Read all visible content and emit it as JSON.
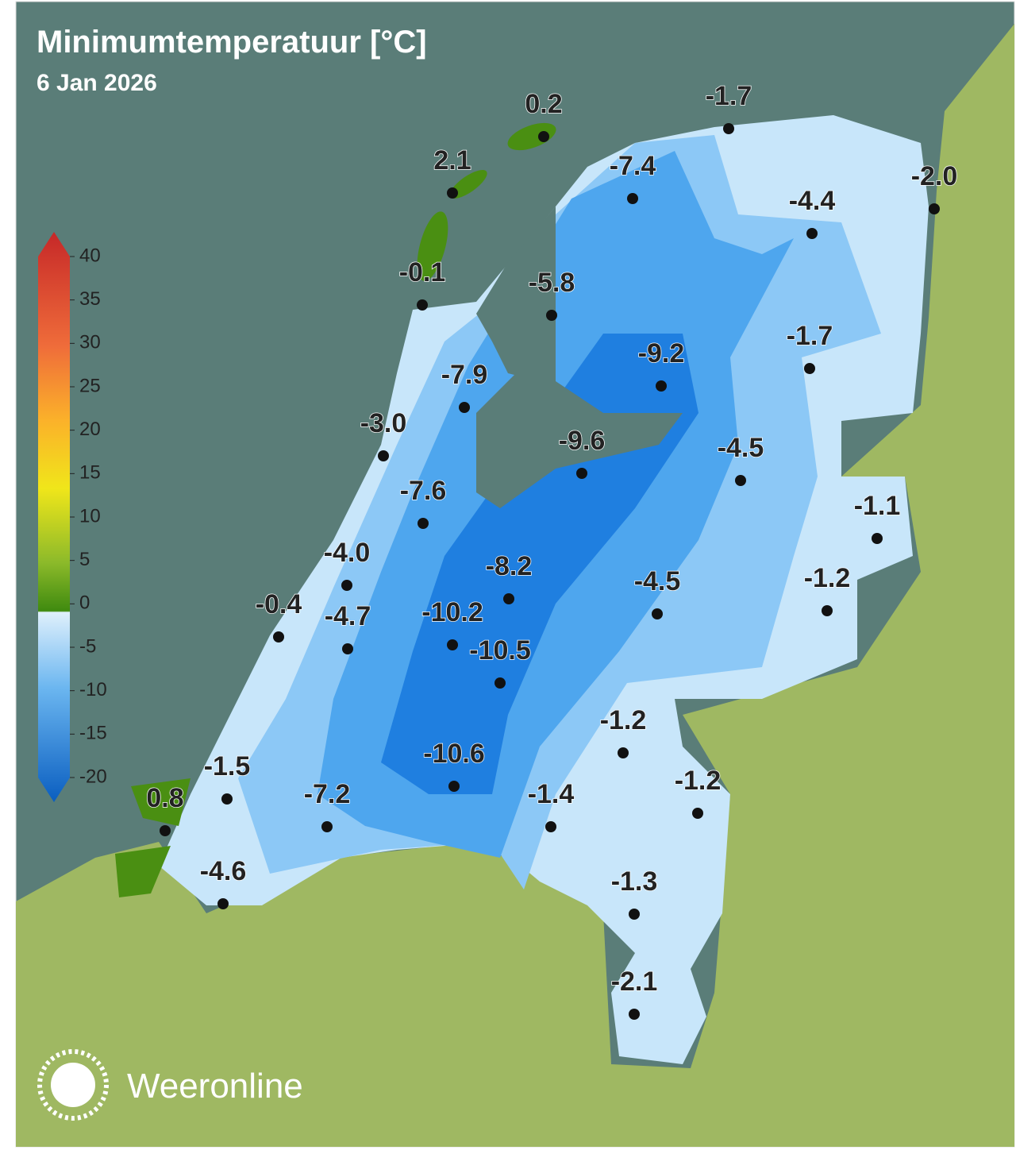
{
  "title": "Minimumtemperatuur [°C]",
  "date": "6 Jan 2026",
  "legend": {
    "ticks": [
      40,
      35,
      30,
      25,
      20,
      15,
      10,
      5,
      0,
      -5,
      -10,
      -15,
      -20
    ]
  },
  "stations": [
    {
      "label": "0.2"
    },
    {
      "label": "2.1"
    },
    {
      "label": "-0.1"
    },
    {
      "label": "-1.7"
    },
    {
      "label": "-7.4"
    },
    {
      "label": "-2.0"
    },
    {
      "label": "-4.4"
    },
    {
      "label": "-5.8"
    },
    {
      "label": "-9.2"
    },
    {
      "label": "-1.7"
    },
    {
      "label": "-7.9"
    },
    {
      "label": "-3.0"
    },
    {
      "label": "-9.6"
    },
    {
      "label": "-4.5"
    },
    {
      "label": "-7.6"
    },
    {
      "label": "-1.1"
    },
    {
      "label": "-4.0"
    },
    {
      "label": "-8.2"
    },
    {
      "label": "-10.2"
    },
    {
      "label": "-4.5"
    },
    {
      "label": "-1.2"
    },
    {
      "label": "-0.4"
    },
    {
      "label": "-4.7"
    },
    {
      "label": "-10.5"
    },
    {
      "label": "-1.2"
    },
    {
      "label": "-10.6"
    },
    {
      "label": "-1.5"
    },
    {
      "label": "-1.2"
    },
    {
      "label": "0.8"
    },
    {
      "label": "-7.2"
    },
    {
      "label": "-1.4"
    },
    {
      "label": "-4.6"
    },
    {
      "label": "-1.3"
    },
    {
      "label": "-2.1"
    }
  ],
  "brand": "Weeronline"
}
